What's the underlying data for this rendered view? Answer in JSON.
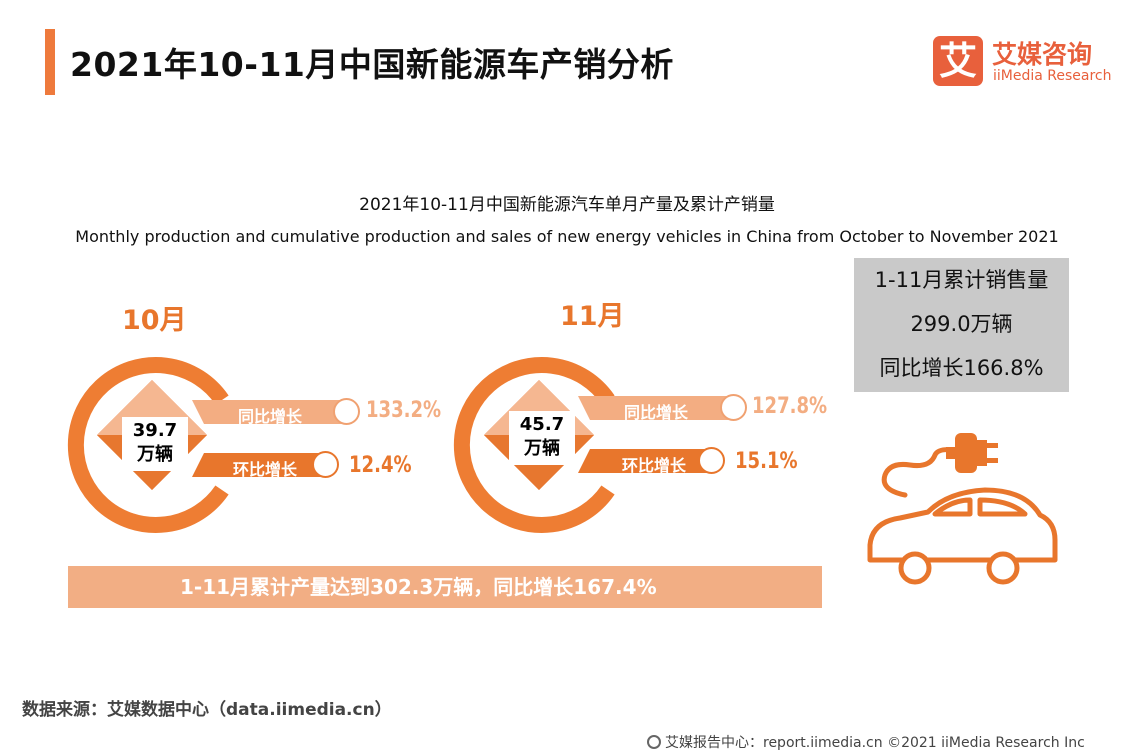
{
  "header": {
    "title": "2021年10-11月中国新能源车产销分析",
    "logo_mark": "艾",
    "logo_cn": "艾媒咨询",
    "logo_en": "iiMedia Research"
  },
  "chart_data": {
    "type": "infographic",
    "title": "2021年10-11月中国新能源汽车单月产量及累计产销量",
    "subtitle": "Monthly production and cumulative production and sales of new energy vehicles in China from October to November 2021",
    "months": [
      {
        "label": "10月",
        "value": "39.7",
        "unit": "万辆",
        "yoy_label": "同比增长",
        "yoy": "133.2%",
        "mom_label": "环比增长",
        "mom": "12.4%"
      },
      {
        "label": "11月",
        "value": "45.7",
        "unit": "万辆",
        "yoy_label": "同比增长",
        "yoy": "127.8%",
        "mom_label": "环比增长",
        "mom": "15.1%"
      }
    ],
    "cumulative_production": "1-11月累计产量达到302.3万辆，同比增长167.4%",
    "cumulative_sales": {
      "line1": "1-11月累计销售量",
      "line2": "299.0万辆",
      "line3": "同比增长166.8%"
    }
  },
  "footer": {
    "source": "数据来源：艾媒数据中心（data.iimedia.cn）",
    "copyright": "艾媒报告中心：report.iimedia.cn  ©2021  iiMedia Research  Inc"
  },
  "colors": {
    "accent": "#e8762c",
    "accent_light": "#f2ae84",
    "logo": "#e8603c",
    "gray_box": "#c9c9c9"
  },
  "icons": [
    "electric-car-icon",
    "plug-icon"
  ]
}
